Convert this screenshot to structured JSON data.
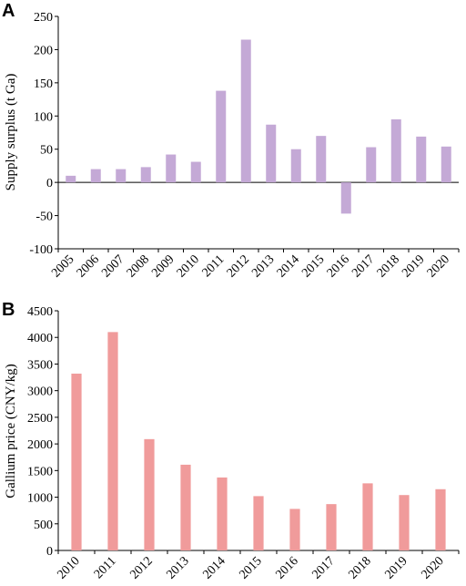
{
  "chart_data": [
    {
      "panel": "A",
      "type": "bar",
      "ylabel": "Supply surplus (t Ga)",
      "xlabel": "",
      "ylim": [
        -100,
        250
      ],
      "yticks": [
        -100,
        -50,
        0,
        50,
        100,
        150,
        200,
        250
      ],
      "categories": [
        "2005",
        "2006",
        "2007",
        "2008",
        "2009",
        "2010",
        "2011",
        "2012",
        "2013",
        "2014",
        "2015",
        "2016",
        "2017",
        "2018",
        "2019",
        "2020"
      ],
      "values": [
        10,
        20,
        20,
        23,
        42,
        31,
        138,
        215,
        87,
        50,
        70,
        -47,
        53,
        95,
        69,
        54
      ],
      "color": "#c4a9d6",
      "grid": false
    },
    {
      "panel": "B",
      "type": "bar",
      "ylabel": "Gallium price (CNY/kg)",
      "xlabel": "",
      "ylim": [
        0,
        4500
      ],
      "yticks": [
        0,
        500,
        1000,
        1500,
        2000,
        2500,
        3000,
        3500,
        4000,
        4500
      ],
      "categories": [
        "2010",
        "2011",
        "2012",
        "2013",
        "2014",
        "2015",
        "2016",
        "2017",
        "2018",
        "2019",
        "2020"
      ],
      "values": [
        3320,
        4100,
        2090,
        1610,
        1370,
        1020,
        780,
        870,
        1260,
        1040,
        1150
      ],
      "color": "#f09b9b",
      "grid": false
    }
  ]
}
